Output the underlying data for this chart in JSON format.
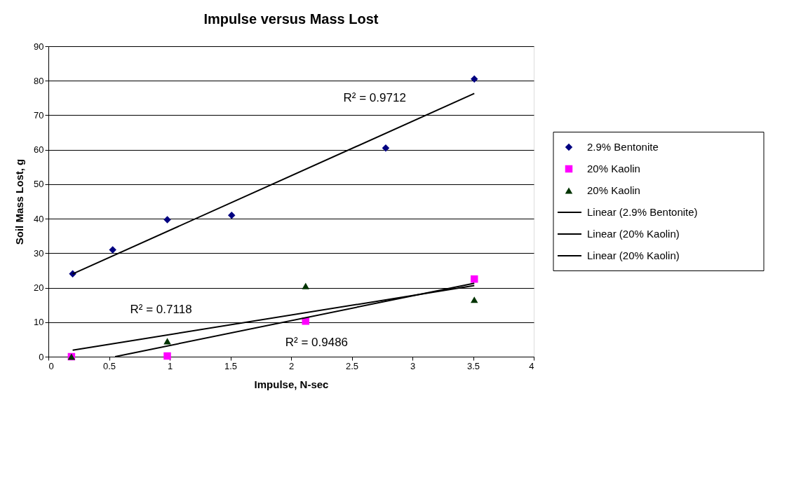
{
  "chart_data": {
    "type": "scatter",
    "title": "Impulse versus Mass Lost",
    "xlabel": "Impulse, N-sec",
    "ylabel": "Soil Mass Lost, g",
    "xlim": [
      0,
      4
    ],
    "xticks": [
      0,
      0.5,
      1,
      1.5,
      2,
      2.5,
      3,
      3.5,
      4
    ],
    "ylim": [
      0,
      90
    ],
    "yticks": [
      0,
      10,
      20,
      30,
      40,
      50,
      60,
      70,
      80,
      90
    ],
    "grid": "y",
    "legend": "right",
    "series": [
      {
        "name": "2.9% Bentonite",
        "marker": "diamond",
        "color": "#000080",
        "x": [
          0.2,
          0.53,
          0.98,
          1.51,
          2.78,
          3.51
        ],
        "values": [
          24,
          31,
          39.7,
          41,
          60.5,
          80.5
        ]
      },
      {
        "name": "20% Kaolin",
        "marker": "square",
        "color": "#ff00ff",
        "x": [
          0.19,
          0.98,
          2.12,
          3.51
        ],
        "values": [
          0,
          0.2,
          10.3,
          22.5
        ]
      },
      {
        "name": "20% Kaolin",
        "marker": "triangle",
        "color": "#003300",
        "x": [
          0.19,
          0.98,
          2.12,
          3.51
        ],
        "values": [
          0,
          4.5,
          20.5,
          16.5
        ]
      },
      {
        "name": "Linear (2.9% Bentonite)",
        "type": "line",
        "marker": "none",
        "color": "#000000",
        "x": [
          0.2,
          3.51
        ],
        "values": [
          24,
          76.3
        ]
      },
      {
        "name": "Linear (20% Kaolin)",
        "type": "line",
        "marker": "none",
        "color": "#000000",
        "x": [
          0.55,
          3.51
        ],
        "values": [
          0,
          21.3
        ]
      },
      {
        "name": "Linear (20% Kaolin)",
        "type": "line",
        "marker": "none",
        "color": "#000000",
        "x": [
          0.2,
          3.51
        ],
        "values": [
          1.9,
          20.6
        ]
      }
    ],
    "annotations": [
      "R² = 0.9712",
      "R² = 0.9486",
      "R² = 0.7118"
    ]
  }
}
